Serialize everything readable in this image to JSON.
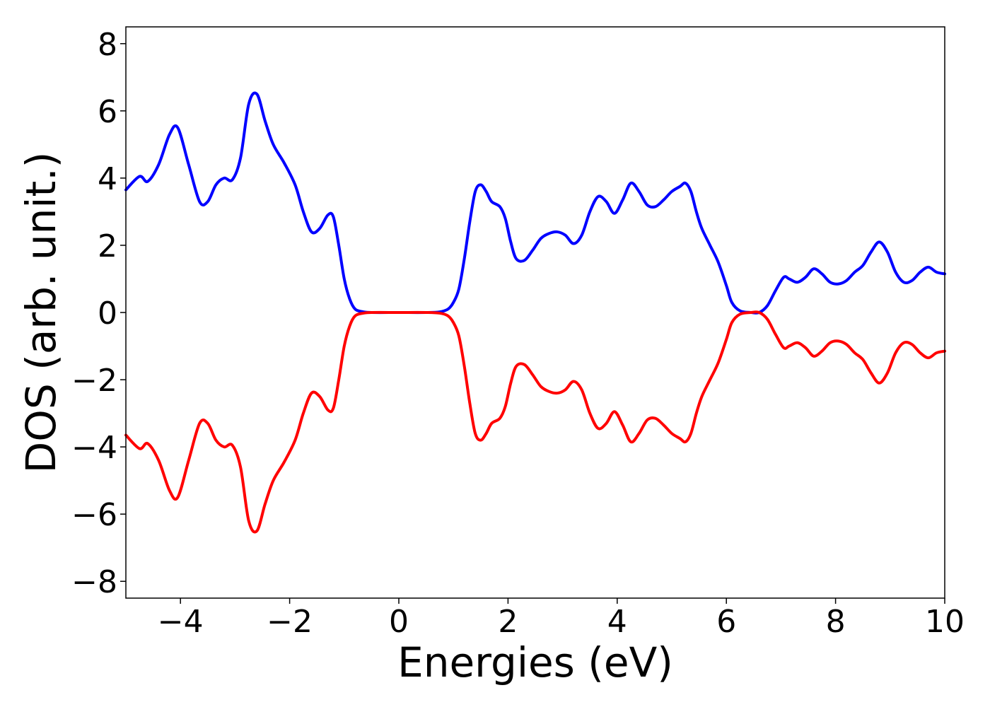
{
  "chart_data": {
    "type": "line",
    "xlabel": "Energies (eV)",
    "ylabel": "DOS (arb. unit.)",
    "xlim": [
      -5,
      10
    ],
    "ylim": [
      -8.5,
      8.5
    ],
    "xticks": [
      -4,
      -2,
      0,
      2,
      4,
      6,
      8,
      10
    ],
    "xtick_labels": [
      "−4",
      "−2",
      "0",
      "2",
      "4",
      "6",
      "8",
      "10"
    ],
    "yticks": [
      8,
      6,
      4,
      2,
      0,
      -2,
      -4,
      -6,
      -8
    ],
    "ytick_labels": [
      "8",
      "6",
      "4",
      "2",
      "0",
      "−2",
      "−4",
      "−6",
      "−8"
    ],
    "grid": false,
    "series": [
      {
        "color": "#0000ff",
        "x": [
          -5.0,
          -4.75,
          -4.6,
          -4.4,
          -4.2,
          -4.05,
          -3.85,
          -3.65,
          -3.5,
          -3.35,
          -3.2,
          -3.05,
          -2.9,
          -2.75,
          -2.6,
          -2.45,
          -2.3,
          -2.1,
          -1.9,
          -1.75,
          -1.6,
          -1.45,
          -1.3,
          -1.2,
          -1.1,
          -1.0,
          -0.9,
          -0.8,
          -0.65,
          -0.5,
          0.0,
          0.5,
          0.75,
          0.9,
          1.0,
          1.1,
          1.2,
          1.3,
          1.4,
          1.5,
          1.6,
          1.7,
          1.85,
          1.95,
          2.05,
          2.15,
          2.3,
          2.45,
          2.6,
          2.75,
          2.9,
          3.05,
          3.2,
          3.35,
          3.5,
          3.65,
          3.8,
          3.95,
          4.1,
          4.25,
          4.4,
          4.55,
          4.7,
          4.85,
          5.0,
          5.15,
          5.25,
          5.35,
          5.45,
          5.55,
          5.7,
          5.85,
          6.0,
          6.1,
          6.25,
          6.45,
          6.6,
          6.75,
          6.9,
          7.05,
          7.15,
          7.3,
          7.45,
          7.6,
          7.75,
          7.9,
          8.05,
          8.2,
          8.35,
          8.5,
          8.65,
          8.8,
          8.95,
          9.1,
          9.25,
          9.4,
          9.55,
          9.7,
          9.85,
          10.0
        ],
        "y": [
          3.65,
          4.05,
          3.9,
          4.4,
          5.3,
          5.5,
          4.4,
          3.3,
          3.3,
          3.8,
          4.0,
          3.95,
          4.6,
          6.2,
          6.5,
          5.7,
          5.0,
          4.45,
          3.8,
          3.0,
          2.4,
          2.5,
          2.9,
          2.85,
          2.0,
          1.0,
          0.4,
          0.1,
          0.02,
          0.0,
          0.0,
          0.0,
          0.02,
          0.1,
          0.3,
          0.7,
          1.6,
          2.7,
          3.6,
          3.8,
          3.6,
          3.3,
          3.15,
          2.8,
          2.1,
          1.6,
          1.55,
          1.85,
          2.2,
          2.35,
          2.4,
          2.3,
          2.05,
          2.3,
          3.0,
          3.45,
          3.3,
          2.95,
          3.35,
          3.85,
          3.6,
          3.2,
          3.15,
          3.35,
          3.6,
          3.75,
          3.85,
          3.6,
          3.0,
          2.5,
          2.0,
          1.5,
          0.8,
          0.3,
          0.05,
          0.0,
          0.0,
          0.2,
          0.65,
          1.05,
          1.0,
          0.9,
          1.05,
          1.3,
          1.15,
          0.9,
          0.85,
          0.95,
          1.2,
          1.4,
          1.8,
          2.1,
          1.8,
          1.2,
          0.9,
          0.95,
          1.2,
          1.35,
          1.2,
          1.15
        ]
      },
      {
        "color": "#ff0000",
        "x": [
          -5.0,
          -4.75,
          -4.6,
          -4.4,
          -4.2,
          -4.05,
          -3.85,
          -3.65,
          -3.5,
          -3.35,
          -3.2,
          -3.05,
          -2.9,
          -2.75,
          -2.6,
          -2.45,
          -2.3,
          -2.1,
          -1.9,
          -1.75,
          -1.6,
          -1.45,
          -1.3,
          -1.2,
          -1.1,
          -1.0,
          -0.9,
          -0.8,
          -0.65,
          -0.5,
          0.0,
          0.5,
          0.75,
          0.9,
          1.0,
          1.1,
          1.2,
          1.3,
          1.4,
          1.5,
          1.6,
          1.7,
          1.85,
          1.95,
          2.05,
          2.15,
          2.3,
          2.45,
          2.6,
          2.75,
          2.9,
          3.05,
          3.2,
          3.35,
          3.5,
          3.65,
          3.8,
          3.95,
          4.1,
          4.25,
          4.4,
          4.55,
          4.7,
          4.85,
          5.0,
          5.15,
          5.25,
          5.35,
          5.45,
          5.55,
          5.7,
          5.85,
          6.0,
          6.1,
          6.25,
          6.45,
          6.6,
          6.75,
          6.9,
          7.05,
          7.15,
          7.3,
          7.45,
          7.6,
          7.75,
          7.9,
          8.05,
          8.2,
          8.35,
          8.5,
          8.65,
          8.8,
          8.95,
          9.1,
          9.25,
          9.4,
          9.55,
          9.7,
          9.85,
          10.0
        ],
        "y": [
          -3.65,
          -4.05,
          -3.9,
          -4.4,
          -5.3,
          -5.5,
          -4.4,
          -3.3,
          -3.3,
          -3.8,
          -4.0,
          -3.95,
          -4.6,
          -6.2,
          -6.5,
          -5.7,
          -5.0,
          -4.45,
          -3.8,
          -3.0,
          -2.4,
          -2.5,
          -2.9,
          -2.85,
          -2.0,
          -1.0,
          -0.4,
          -0.1,
          -0.02,
          0.0,
          0.0,
          0.0,
          -0.02,
          -0.1,
          -0.3,
          -0.7,
          -1.6,
          -2.7,
          -3.6,
          -3.8,
          -3.6,
          -3.3,
          -3.15,
          -2.8,
          -2.1,
          -1.6,
          -1.55,
          -1.85,
          -2.2,
          -2.35,
          -2.4,
          -2.3,
          -2.05,
          -2.3,
          -3.0,
          -3.45,
          -3.3,
          -2.95,
          -3.35,
          -3.85,
          -3.6,
          -3.2,
          -3.15,
          -3.35,
          -3.6,
          -3.75,
          -3.85,
          -3.6,
          -3.0,
          -2.5,
          -2.0,
          -1.5,
          -0.8,
          -0.3,
          -0.05,
          0.0,
          0.0,
          -0.2,
          -0.65,
          -1.05,
          -1.0,
          -0.9,
          -1.05,
          -1.3,
          -1.15,
          -0.9,
          -0.85,
          -0.95,
          -1.2,
          -1.4,
          -1.8,
          -2.1,
          -1.8,
          -1.2,
          -0.9,
          -0.95,
          -1.2,
          -1.35,
          -1.2,
          -1.15
        ]
      }
    ]
  }
}
